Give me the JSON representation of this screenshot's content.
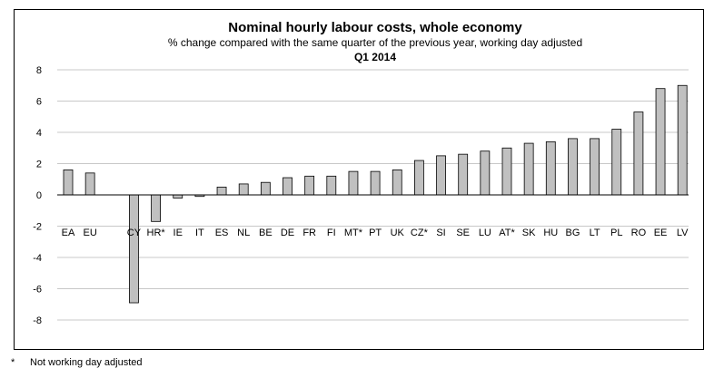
{
  "chart_data": {
    "type": "bar",
    "title": "Nominal hourly labour costs, whole economy",
    "subtitle": "% change compared with the same quarter of the previous year, working day adjusted",
    "period": "Q1 2014",
    "xlabel": "",
    "ylabel": "",
    "ylim": [
      -9,
      8
    ],
    "yticks": [
      8,
      6,
      4,
      2,
      0,
      -2,
      -4,
      -6,
      -8
    ],
    "grid": true,
    "bar_color": "#c0c0c0",
    "bar_stroke": "#000000",
    "grid_color": "#c8c8c8",
    "categories": [
      "EA",
      "EU",
      "",
      "CY",
      "HR*",
      "IE",
      "IT",
      "ES",
      "NL",
      "BE",
      "DE",
      "FR",
      "FI",
      "MT*",
      "PT",
      "UK",
      "CZ*",
      "SI",
      "SE",
      "LU",
      "AT*",
      "SK",
      "HU",
      "BG",
      "LT",
      "PL",
      "RO",
      "EE",
      "LV"
    ],
    "values": [
      1.6,
      1.4,
      null,
      -6.9,
      -1.7,
      -0.2,
      -0.1,
      0.5,
      0.7,
      0.8,
      1.1,
      1.2,
      1.2,
      1.5,
      1.5,
      1.6,
      2.2,
      2.5,
      2.6,
      2.8,
      3.0,
      3.3,
      3.4,
      3.6,
      3.6,
      4.2,
      5.3,
      6.8,
      7.0
    ]
  },
  "footnote": {
    "symbol": "*",
    "text": "Not working day adjusted"
  }
}
